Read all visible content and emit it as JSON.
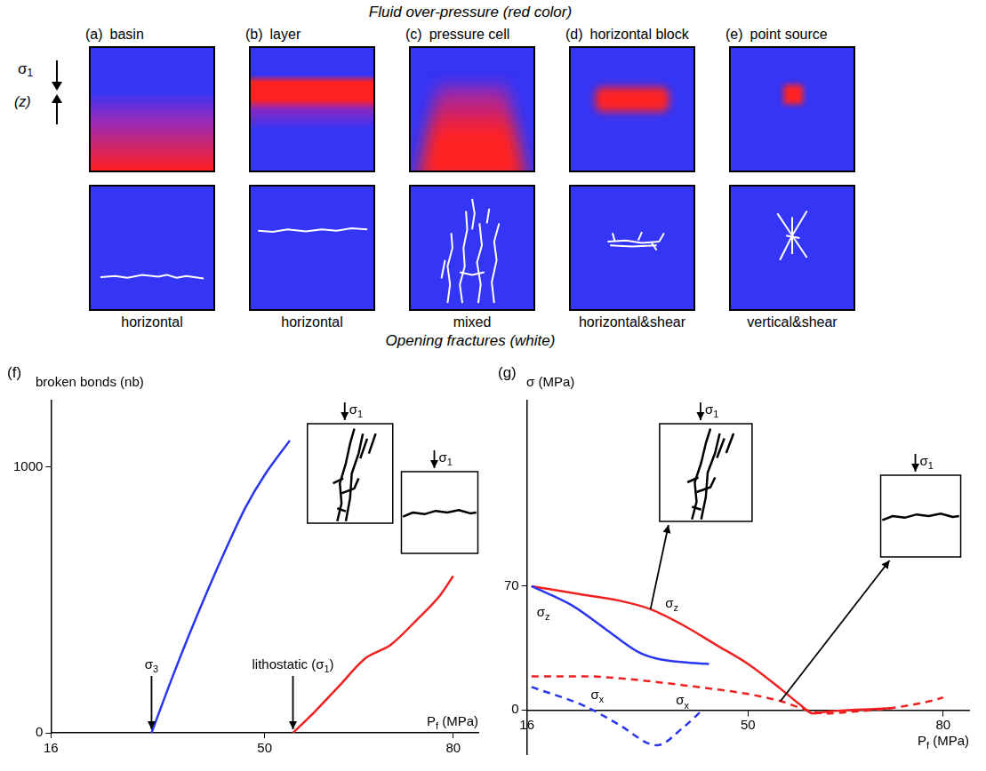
{
  "header": {
    "title": "Fluid over-pressure (red color)",
    "subtitle": "Opening fractures (white)",
    "axis_labels": [
      "σ1",
      "(z)"
    ]
  },
  "panels": [
    {
      "letter": "(a)",
      "title": "basin",
      "fractures": "horizontal"
    },
    {
      "letter": "(b)",
      "title": "layer",
      "fractures": "horizontal"
    },
    {
      "letter": "(c)",
      "title": "pressure cell",
      "fractures": "mixed"
    },
    {
      "letter": "(d)",
      "title": "horizontal block",
      "fractures": "horizontal&shear"
    },
    {
      "letter": "(e)",
      "title": "point source",
      "fractures": "vertical&shear"
    }
  ],
  "chart_data": [
    {
      "letter": "(f)",
      "type": "line",
      "y_label": "broken bonds (nb)",
      "x_label": "Pf (MPa)",
      "xlim": [
        16,
        84
      ],
      "xticks": [
        16,
        50,
        80
      ],
      "ylim": [
        0,
        1250
      ],
      "yticks": [
        0,
        1000
      ],
      "grid": false,
      "series": [
        {
          "color": "#2a35f0",
          "line_style": "solid",
          "x": [
            32,
            35,
            38,
            41,
            44,
            47,
            50,
            54
          ],
          "values": [
            0,
            190,
            370,
            540,
            700,
            850,
            970,
            1100
          ]
        },
        {
          "color": "#f02020",
          "line_style": "solid",
          "x": [
            54.5,
            58,
            62,
            66,
            70,
            74,
            78,
            80
          ],
          "values": [
            0,
            80,
            180,
            280,
            330,
            420,
            520,
            590
          ]
        }
      ],
      "annotations": [
        {
          "text": "σ3",
          "x": 32
        },
        {
          "text": "lithostatic (σ1)",
          "x": 54.5
        }
      ],
      "insets": [
        {
          "label": "σ1"
        },
        {
          "label": "σ1"
        }
      ]
    },
    {
      "letter": "(g)",
      "type": "line",
      "y_label": "σ (MPa)",
      "x_label": "Pf (MPa)",
      "xlim": [
        16,
        84
      ],
      "xticks": [
        16,
        50,
        80
      ],
      "ylim": [
        -25,
        175
      ],
      "yticks": [
        0,
        70
      ],
      "grid": false,
      "series": [
        {
          "name": "σz",
          "color": "#2a35f0",
          "line_style": "solid",
          "x": [
            16.7,
            23,
            28,
            33,
            36,
            40,
            44
          ],
          "values": [
            70,
            59,
            46,
            33,
            29,
            27,
            26
          ]
        },
        {
          "name": "σx",
          "color": "#2a35f0",
          "line_style": "dashed",
          "x": [
            16.7,
            25,
            30,
            36,
            40,
            43
          ],
          "values": [
            13,
            2,
            -8,
            -20,
            -10,
            0
          ]
        },
        {
          "name": "σz",
          "color": "#f02020",
          "line_style": "solid",
          "x": [
            16.7,
            25,
            30,
            35,
            40,
            45,
            50,
            55,
            58,
            60,
            62,
            66,
            72
          ],
          "values": [
            70,
            65,
            62,
            57,
            48,
            37,
            26,
            12,
            3,
            -2,
            -1,
            0,
            1
          ]
        },
        {
          "name": "σx",
          "color": "#f02020",
          "line_style": "dashed",
          "x": [
            16.7,
            25,
            30,
            40,
            50,
            55,
            59,
            62,
            66,
            72,
            78,
            80
          ],
          "values": [
            19,
            19,
            18,
            14,
            9,
            5,
            0,
            -2,
            -1,
            1,
            5,
            7
          ]
        }
      ],
      "insets": [
        {
          "label": "σ1"
        },
        {
          "label": "σ1"
        }
      ]
    }
  ]
}
